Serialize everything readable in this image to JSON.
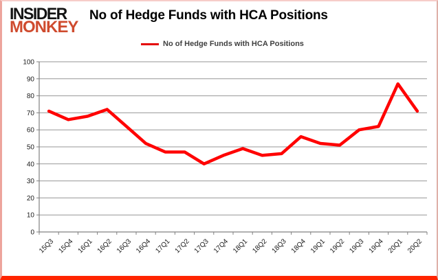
{
  "logo": {
    "line1": "INSIDER",
    "line2": "MONKEY",
    "line1_color": "#141414",
    "line2_color": "#cf4b2e"
  },
  "header": {
    "title": "No of Hedge Funds with HCA Positions"
  },
  "legend": {
    "label": "No of Hedge Funds with HCA Positions",
    "line_color": "#e40000"
  },
  "chart_data": {
    "type": "line",
    "title": "No of Hedge Funds with HCA Positions",
    "categories": [
      "15Q3",
      "15Q4",
      "16Q1",
      "16Q2",
      "16Q3",
      "16Q4",
      "17Q1",
      "17Q2",
      "17Q3",
      "17Q4",
      "18Q1",
      "18Q2",
      "18Q3",
      "18Q4",
      "19Q1",
      "19Q2",
      "19Q3",
      "19Q4",
      "20Q1",
      "20Q2"
    ],
    "series": [
      {
        "name": "No of Hedge Funds with HCA Positions",
        "color": "#ff0000",
        "values": [
          71,
          66,
          68,
          72,
          62,
          52,
          47,
          47,
          40,
          45,
          49,
          45,
          46,
          56,
          52,
          51,
          60,
          62,
          87,
          71
        ]
      }
    ],
    "ylim": [
      0,
      100
    ],
    "yticks": [
      0,
      10,
      20,
      30,
      40,
      50,
      60,
      70,
      80,
      90,
      100
    ],
    "grid": "horizontal",
    "legend_position": "top",
    "axis_color": "#808080",
    "grid_color": "#969696",
    "tick_label_color": "#1a1a1a"
  }
}
